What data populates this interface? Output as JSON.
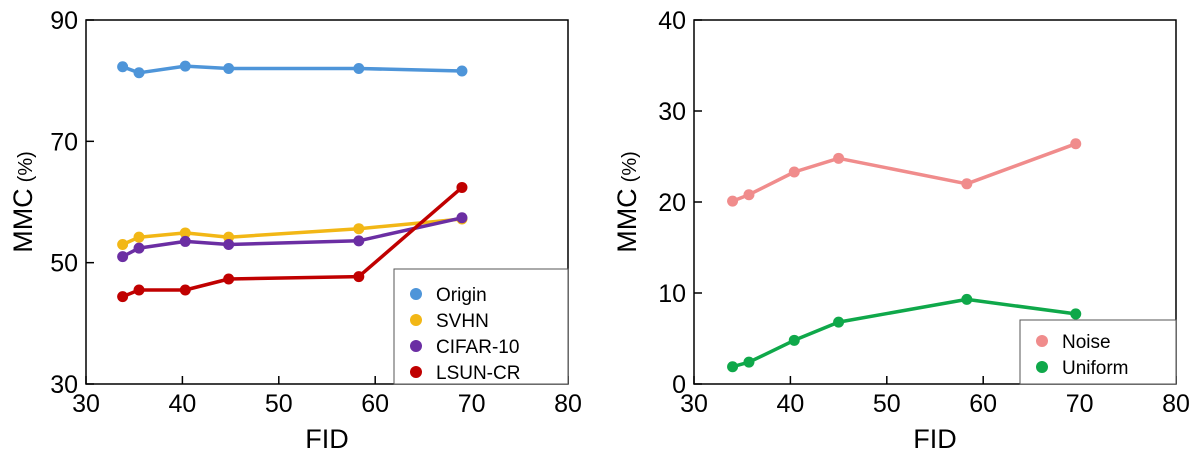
{
  "chart_data": [
    {
      "type": "line",
      "xlabel": "FID",
      "ylabel": "MMC",
      "ylabel_unit": "(%)",
      "xlim": [
        30,
        80
      ],
      "ylim": [
        30,
        90
      ],
      "xticks": [
        "30",
        "40",
        "50",
        "60",
        "70",
        "80"
      ],
      "yticks": [
        "30",
        "50",
        "70",
        "90"
      ],
      "legend_position": "bottom-right",
      "grid": false,
      "x": [
        33.8,
        35.5,
        40.3,
        44.8,
        58.3,
        69.0
      ],
      "series": [
        {
          "name": "Origin",
          "color": "#4e95d9",
          "values": [
            82.3,
            81.3,
            82.4,
            82.0,
            82.0,
            81.6
          ]
        },
        {
          "name": "SVHN",
          "color": "#f2b716",
          "values": [
            53.0,
            54.2,
            54.9,
            54.2,
            55.6,
            57.2
          ]
        },
        {
          "name": "CIFAR-10",
          "color": "#6b2ea3",
          "values": [
            51.0,
            52.4,
            53.5,
            53.0,
            53.6,
            57.4
          ]
        },
        {
          "name": "LSUN-CR",
          "color": "#c00000",
          "values": [
            44.4,
            45.5,
            45.5,
            47.3,
            47.7,
            62.4
          ]
        }
      ]
    },
    {
      "type": "line",
      "xlabel": "FID",
      "ylabel": "MMC",
      "ylabel_unit": "(%)",
      "xlim": [
        30,
        80
      ],
      "ylim": [
        0,
        40
      ],
      "xticks": [
        "30",
        "40",
        "50",
        "60",
        "70",
        "80"
      ],
      "yticks": [
        "0",
        "10",
        "20",
        "30",
        "40"
      ],
      "legend_position": "bottom-right",
      "grid": false,
      "x": [
        34.0,
        35.7,
        40.4,
        45.0,
        58.3,
        69.6
      ],
      "series": [
        {
          "name": "Noise",
          "color": "#f08c8c",
          "values": [
            20.1,
            20.8,
            23.3,
            24.8,
            22.0,
            26.4
          ]
        },
        {
          "name": "Uniform",
          "color": "#0fa84a",
          "values": [
            1.9,
            2.4,
            4.8,
            6.8,
            9.3,
            7.7
          ]
        }
      ]
    }
  ]
}
